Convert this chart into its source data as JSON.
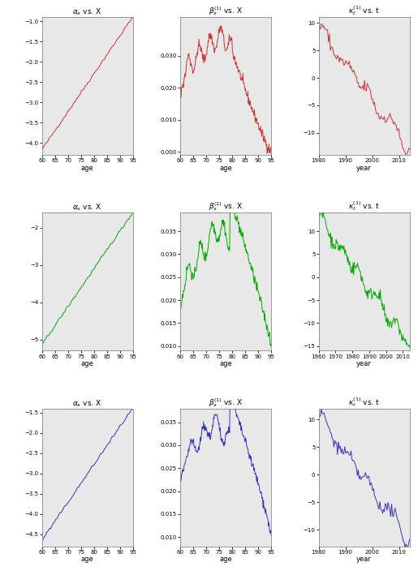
{
  "red_color": "#cc3333",
  "green_color": "#00aa00",
  "blue_color": "#3333bb",
  "bg_color": "#e8e8e8",
  "row1": {
    "alpha_xlim": [
      60,
      95
    ],
    "alpha_ylim": [
      -4.3,
      -0.9
    ],
    "alpha_yticks": [
      -4.0,
      -3.5,
      -3.0,
      -2.5,
      -2.0,
      -1.5,
      -1.0
    ],
    "alpha_xticks": [
      60,
      65,
      70,
      75,
      80,
      85,
      90,
      95
    ],
    "beta_xlim": [
      60,
      95
    ],
    "beta_ylim": [
      -0.001,
      0.042
    ],
    "beta_yticks": [
      0.0,
      0.01,
      0.02,
      0.03
    ],
    "beta_xticks": [
      60,
      65,
      70,
      75,
      80,
      85,
      90,
      95
    ],
    "kappa_xlim": [
      1980,
      2014
    ],
    "kappa_ylim": [
      -14,
      11
    ],
    "kappa_yticks": [
      -10,
      -5,
      0,
      5,
      10
    ],
    "kappa_xticks": [
      1980,
      1990,
      2000,
      2010
    ]
  },
  "row2": {
    "alpha_xlim": [
      60,
      95
    ],
    "alpha_ylim": [
      -5.3,
      -1.6
    ],
    "alpha_yticks": [
      -5.0,
      -4.0,
      -3.0,
      -2.0
    ],
    "alpha_xticks": [
      60,
      65,
      70,
      75,
      80,
      85,
      90,
      95
    ],
    "beta_xlim": [
      60,
      95
    ],
    "beta_ylim": [
      0.009,
      0.039
    ],
    "beta_yticks": [
      0.01,
      0.015,
      0.02,
      0.025,
      0.03,
      0.035
    ],
    "beta_xticks": [
      60,
      65,
      70,
      75,
      80,
      85,
      90,
      95
    ],
    "kappa_xlim": [
      1960,
      2014
    ],
    "kappa_ylim": [
      -16,
      14
    ],
    "kappa_yticks": [
      -15,
      -10,
      -5,
      0,
      5,
      10
    ],
    "kappa_xticks": [
      1960,
      1970,
      1980,
      1990,
      2000,
      2010
    ]
  },
  "row3": {
    "alpha_xlim": [
      60,
      95
    ],
    "alpha_ylim": [
      -4.8,
      -1.4
    ],
    "alpha_yticks": [
      -4.5,
      -4.0,
      -3.5,
      -3.0,
      -2.5,
      -2.0,
      -1.5
    ],
    "alpha_xticks": [
      60,
      65,
      70,
      75,
      80,
      85,
      90,
      95
    ],
    "beta_xlim": [
      60,
      95
    ],
    "beta_ylim": [
      0.008,
      0.038
    ],
    "beta_yticks": [
      0.01,
      0.015,
      0.02,
      0.025,
      0.03,
      0.035
    ],
    "beta_xticks": [
      60,
      65,
      70,
      75,
      80,
      85,
      90,
      95
    ],
    "kappa_xlim": [
      1980,
      2014
    ],
    "kappa_ylim": [
      -13,
      12
    ],
    "kappa_yticks": [
      -10,
      -5,
      0,
      5,
      10
    ],
    "kappa_xticks": [
      1980,
      1990,
      2000,
      2010
    ]
  }
}
